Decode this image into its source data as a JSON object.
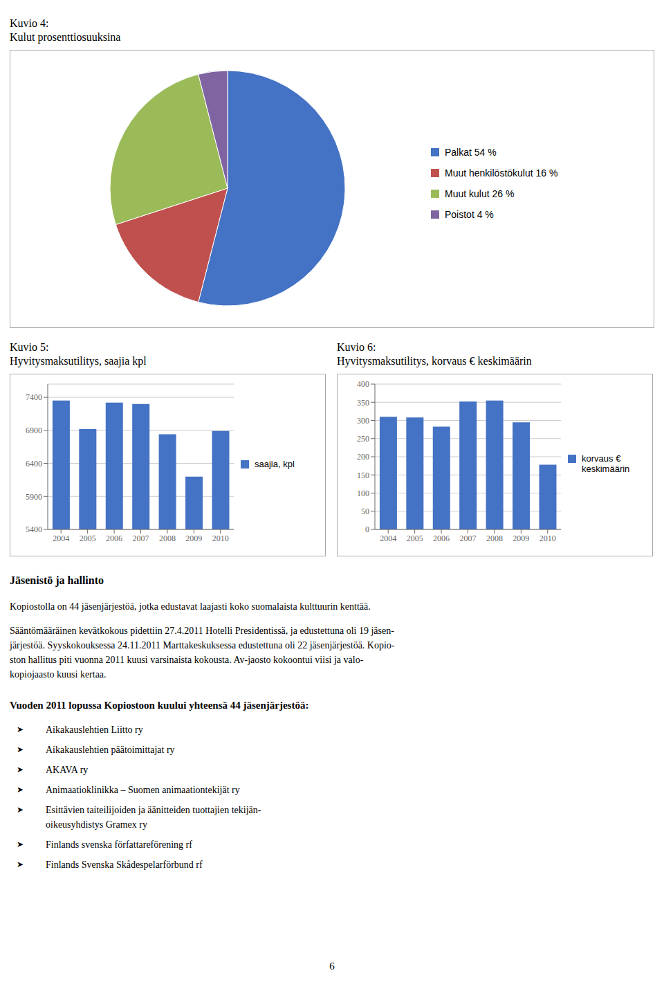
{
  "chart_data": [
    {
      "type": "pie",
      "title": "Kuvio 4:",
      "subtitle": "Kulut prosenttiosuuksina",
      "categories": [
        "Palkat 54 %",
        "Muut henkilöstökulut 16 %",
        "Muut kulut 26 %",
        "Poistot 4 %"
      ],
      "values": [
        54,
        16,
        26,
        4
      ],
      "colors": [
        "#4472C4",
        "#C0504D",
        "#9BBB59",
        "#8064A2"
      ],
      "legend": "right"
    },
    {
      "type": "bar",
      "title": "Kuvio 5:",
      "subtitle": "Hyvitysmaksutilitys, saajia kpl",
      "categories": [
        "2004",
        "2005",
        "2006",
        "2007",
        "2008",
        "2009",
        "2010"
      ],
      "series": [
        {
          "name": "saajia, kpl",
          "color": "#4472C4",
          "values": [
            7350,
            6920,
            7320,
            7300,
            6840,
            6200,
            6890
          ]
        }
      ],
      "ylim": [
        5400,
        7600
      ],
      "yticks": [
        5400,
        5900,
        6400,
        6900,
        7400
      ],
      "grid": true,
      "legend": "right"
    },
    {
      "type": "bar",
      "title": "Kuvio 6:",
      "subtitle": "Hyvitysmaksutilitys, korvaus € keskimäärin",
      "categories": [
        "2004",
        "2005",
        "2006",
        "2007",
        "2008",
        "2009",
        "2010"
      ],
      "series": [
        {
          "name": "korvaus €\nkeskimäärin",
          "color": "#4472C4",
          "values": [
            310,
            308,
            283,
            352,
            355,
            295,
            178
          ]
        }
      ],
      "ylim": [
        0,
        400
      ],
      "yticks": [
        0,
        50,
        100,
        150,
        200,
        250,
        300,
        350,
        400
      ],
      "grid": true,
      "legend": "right"
    }
  ],
  "annotations": [
    [
      "Jäsenistö ja hallinto"
    ],
    [
      "Kopiostolla on 44 jäsenjärjestöä, jotka edustavat laajasti koko suomalaista kulttuurin kenttää."
    ],
    [
      "Sääntömääräinen kevätkokous pidettiin 27.4.2011 Hotelli Presidentissä, ja edustettuna oli 19 jäsen-",
      "järjestöä. Syyskokouksessa 24.11.2011 Marttakeskuksessa edustettuna oli 22 jäsenjärjestöä. Kopio-",
      "ston hallitus piti vuonna 2011 kuusi varsinaista kokousta. Av-jaosto kokoontui viisi ja valo-",
      "kopiojaasto kuusi kertaa."
    ],
    [
      "Vuoden 2011 lopussa Kopiostoon kuului yhteensä 44 jäsenjärjestöä:"
    ],
    [
      "➤ Aikakauslehtien Liitto ry",
      "➤ Aikakauslehtien päätoimittajat ry",
      "➤ AKAVA ry",
      "➤ Animaatioklinikka – Suomen animaationtekijät ry",
      "➤ Esittävien taiteilijoiden ja äänitteiden tuottajien tekijän-\noikeusyhdistys Gramex ry",
      "➤ Finlands svenska författareförening rf",
      "➤ Finlands Svenska Skådespelarförbund rf"
    ],
    [
      "6"
    ]
  ]
}
